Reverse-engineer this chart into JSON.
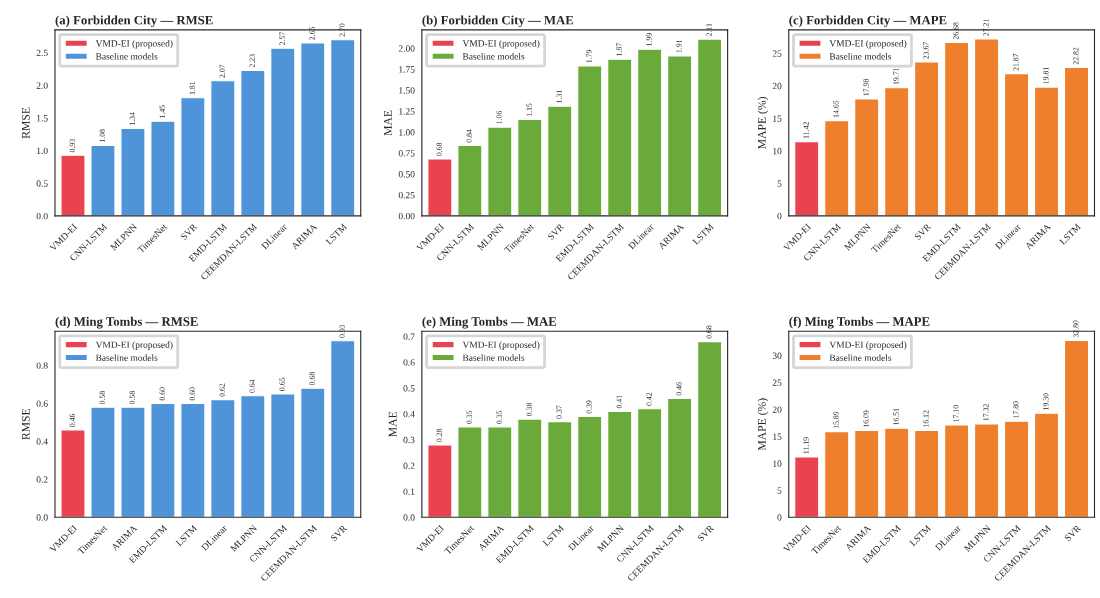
{
  "chart_data": [
    {
      "type": "bar",
      "title": "(a) Forbidden City — RMSE",
      "ylabel": "RMSE",
      "categories": [
        "VMD-EI",
        "CNN-LSTM",
        "MLPNN",
        "TimesNet",
        "SVR",
        "EMD-LSTM",
        "CEEMDAN-LSTM",
        "DLinear",
        "ARIMA",
        "LSTM"
      ],
      "series": [
        {
          "name": "VMD-EI (proposed)",
          "color": "#e8434f",
          "values": [
            0.93,
            null,
            null,
            null,
            null,
            null,
            null,
            null,
            null,
            null
          ],
          "value_labels": [
            "0.93",
            null,
            null,
            null,
            null,
            null,
            null,
            null,
            null,
            null
          ]
        },
        {
          "name": "Baseline models",
          "color": "#4f93d8",
          "values": [
            null,
            1.08,
            1.34,
            1.45,
            1.81,
            2.07,
            2.23,
            2.57,
            2.65,
            2.7
          ],
          "value_labels": [
            null,
            "1.08",
            "1.34",
            "1.45",
            "1.81",
            "2.07",
            "2.23",
            "2.57",
            "2.65",
            "2.70"
          ]
        }
      ],
      "ylim": [
        0,
        2.85
      ],
      "yticks": [
        {
          "value": 0,
          "label": "0.0"
        },
        {
          "value": 0.5,
          "label": "0.5"
        },
        {
          "value": 1,
          "label": "1.0"
        },
        {
          "value": 1.5,
          "label": "1.5"
        },
        {
          "value": 2,
          "label": "2.0"
        },
        {
          "value": 2.5,
          "label": "2.5"
        }
      ],
      "legend": "top left",
      "grid": false
    },
    {
      "type": "bar",
      "title": "(b) Forbidden City — MAE",
      "ylabel": "MAE",
      "categories": [
        "VMD-EI",
        "CNN-LSTM",
        "MLPNN",
        "TimesNet",
        "SVR",
        "EMD-LSTM",
        "CEEMDAN-LSTM",
        "DLinear",
        "ARIMA",
        "LSTM"
      ],
      "series": [
        {
          "name": "VMD-EI (proposed)",
          "color": "#e8434f",
          "values": [
            0.68,
            null,
            null,
            null,
            null,
            null,
            null,
            null,
            null,
            null
          ],
          "value_labels": [
            "0.68",
            null,
            null,
            null,
            null,
            null,
            null,
            null,
            null,
            null
          ]
        },
        {
          "name": "Baseline models",
          "color": "#6aaa3a",
          "values": [
            null,
            0.84,
            1.06,
            1.15,
            1.31,
            1.79,
            1.87,
            1.99,
            1.91,
            2.11
          ],
          "value_labels": [
            null,
            "0.84",
            "1.06",
            "1.15",
            "1.31",
            "1.79",
            "1.87",
            "1.99",
            "1.91",
            "2.11"
          ]
        }
      ],
      "ylim": [
        0,
        2.22
      ],
      "yticks": [
        {
          "value": 0,
          "label": "0.00"
        },
        {
          "value": 0.25,
          "label": "0.25"
        },
        {
          "value": 0.5,
          "label": "0.50"
        },
        {
          "value": 0.75,
          "label": "0.75"
        },
        {
          "value": 1,
          "label": "1.00"
        },
        {
          "value": 1.25,
          "label": "1.25"
        },
        {
          "value": 1.5,
          "label": "1.50"
        },
        {
          "value": 1.75,
          "label": "1.75"
        },
        {
          "value": 2,
          "label": "2.00"
        }
      ],
      "legend": "top left",
      "grid": false
    },
    {
      "type": "bar",
      "title": "(c) Forbidden City — MAPE",
      "ylabel": "MAPE (%)",
      "categories": [
        "VMD-EI",
        "CNN-LSTM",
        "MLPNN",
        "TimesNet",
        "SVR",
        "EMD-LSTM",
        "CEEMDAN-LSTM",
        "DLinear",
        "ARIMA",
        "LSTM"
      ],
      "series": [
        {
          "name": "VMD-EI (proposed)",
          "color": "#e8434f",
          "values": [
            11.42,
            null,
            null,
            null,
            null,
            null,
            null,
            null,
            null,
            null
          ],
          "value_labels": [
            "11.42",
            null,
            null,
            null,
            null,
            null,
            null,
            null,
            null,
            null
          ]
        },
        {
          "name": "Baseline models",
          "color": "#ee7f2d",
          "values": [
            null,
            14.65,
            17.98,
            19.71,
            23.67,
            26.68,
            27.21,
            21.87,
            19.81,
            22.82
          ],
          "value_labels": [
            null,
            "14.65",
            "17.98",
            "19.71",
            "23.67",
            "26.68",
            "27.21",
            "21.87",
            "19.81",
            "22.82"
          ]
        }
      ],
      "ylim": [
        0,
        28.6
      ],
      "yticks": [
        0,
        5,
        10,
        15,
        20,
        25
      ],
      "legend": "top left",
      "grid": false
    },
    {
      "type": "bar",
      "title": "(d) Ming Tombs — RMSE",
      "ylabel": "RMSE",
      "categories": [
        "VMD-EI",
        "TimesNet",
        "ARIMA",
        "EMD-LSTM",
        "LSTM",
        "DLinear",
        "MLPNN",
        "CNN-LSTM",
        "CEEMDAN-LSTM",
        "SVR"
      ],
      "series": [
        {
          "name": "VMD-EI (proposed)",
          "color": "#e8434f",
          "values": [
            0.46,
            null,
            null,
            null,
            null,
            null,
            null,
            null,
            null,
            null
          ],
          "value_labels": [
            "0.46",
            null,
            null,
            null,
            null,
            null,
            null,
            null,
            null,
            null
          ]
        },
        {
          "name": "Baseline models",
          "color": "#4f93d8",
          "values": [
            null,
            0.58,
            0.58,
            0.6,
            0.6,
            0.62,
            0.64,
            0.65,
            0.68,
            0.93
          ],
          "value_labels": [
            null,
            "0.58",
            "0.58",
            "0.60",
            "0.60",
            "0.62",
            "0.64",
            "0.65",
            "0.68",
            "0.93"
          ]
        }
      ],
      "ylim": [
        0,
        0.98
      ],
      "yticks": [
        {
          "value": 0,
          "label": "0.0"
        },
        {
          "value": 0.2,
          "label": "0.2"
        },
        {
          "value": 0.4,
          "label": "0.4"
        },
        {
          "value": 0.6,
          "label": "0.6"
        },
        {
          "value": 0.8,
          "label": "0.8"
        }
      ],
      "legend": "top left",
      "grid": false
    },
    {
      "type": "bar",
      "title": "(e) Ming Tombs — MAE",
      "ylabel": "MAE",
      "categories": [
        "VMD-EI",
        "TimesNet",
        "ARIMA",
        "EMD-LSTM",
        "LSTM",
        "DLinear",
        "MLPNN",
        "CNN-LSTM",
        "CEEMDAN-LSTM",
        "SVR"
      ],
      "series": [
        {
          "name": "VMD-EI (proposed)",
          "color": "#e8434f",
          "values": [
            0.28,
            null,
            null,
            null,
            null,
            null,
            null,
            null,
            null,
            null
          ],
          "value_labels": [
            "0.28",
            null,
            null,
            null,
            null,
            null,
            null,
            null,
            null,
            null
          ]
        },
        {
          "name": "Baseline models",
          "color": "#6aaa3a",
          "values": [
            null,
            0.35,
            0.35,
            0.38,
            0.37,
            0.39,
            0.41,
            0.42,
            0.46,
            0.68
          ],
          "value_labels": [
            null,
            "0.35",
            "0.35",
            "0.38",
            "0.37",
            "0.39",
            "0.41",
            "0.42",
            "0.46",
            "0.68"
          ]
        }
      ],
      "ylim": [
        0,
        0.72
      ],
      "yticks": [
        {
          "value": 0,
          "label": "0.0"
        },
        {
          "value": 0.1,
          "label": "0.1"
        },
        {
          "value": 0.2,
          "label": "0.2"
        },
        {
          "value": 0.3,
          "label": "0.3"
        },
        {
          "value": 0.4,
          "label": "0.4"
        },
        {
          "value": 0.5,
          "label": "0.5"
        },
        {
          "value": 0.6,
          "label": "0.6"
        },
        {
          "value": 0.7,
          "label": "0.7"
        }
      ],
      "legend": "top left",
      "grid": false
    },
    {
      "type": "bar",
      "title": "(f) Ming Tombs — MAPE",
      "ylabel": "MAPE (%)",
      "categories": [
        "VMD-EI",
        "TimesNet",
        "ARIMA",
        "EMD-LSTM",
        "LSTM",
        "DLinear",
        "MLPNN",
        "CNN-LSTM",
        "CEEMDAN-LSTM",
        "SVR"
      ],
      "series": [
        {
          "name": "VMD-EI (proposed)",
          "color": "#e8434f",
          "values": [
            11.19,
            null,
            null,
            null,
            null,
            null,
            null,
            null,
            null,
            null
          ],
          "value_labels": [
            "11.19",
            null,
            null,
            null,
            null,
            null,
            null,
            null,
            null,
            null
          ]
        },
        {
          "name": "Baseline models",
          "color": "#ee7f2d",
          "values": [
            null,
            15.89,
            16.09,
            16.51,
            16.12,
            17.1,
            17.32,
            17.8,
            19.3,
            32.8
          ],
          "value_labels": [
            null,
            "15.89",
            "16.09",
            "16.51",
            "16.12",
            "17.10",
            "17.32",
            "17.80",
            "19.30",
            "32.80"
          ]
        }
      ],
      "ylim": [
        0,
        34.5
      ],
      "yticks": [
        0,
        5,
        10,
        15,
        20,
        25,
        30
      ],
      "legend": "top left",
      "grid": false
    }
  ]
}
